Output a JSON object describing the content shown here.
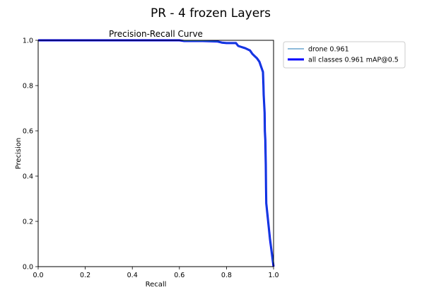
{
  "figure_title": "PR - 4 frozen Layers",
  "chart_data": {
    "type": "line",
    "title": "Precision-Recall Curve",
    "xlabel": "Recall",
    "ylabel": "Precision",
    "xlim": [
      0.0,
      1.0
    ],
    "ylim": [
      0.0,
      1.0
    ],
    "xticks": [
      "0.0",
      "0.2",
      "0.4",
      "0.6",
      "0.8",
      "1.0"
    ],
    "yticks": [
      "0.0",
      "0.2",
      "0.4",
      "0.6",
      "0.8",
      "1.0"
    ],
    "grid": false,
    "legend_position": "outside-top-right",
    "series": [
      {
        "name": "drone 0.961",
        "color": "#1f77b4",
        "width": "thin",
        "points": [
          [
            0.0,
            1.0
          ],
          [
            0.6,
            1.0
          ],
          [
            0.62,
            0.997
          ],
          [
            0.7,
            0.997
          ],
          [
            0.76,
            0.995
          ],
          [
            0.78,
            0.99
          ],
          [
            0.8,
            0.988
          ],
          [
            0.84,
            0.988
          ],
          [
            0.85,
            0.975
          ],
          [
            0.88,
            0.965
          ],
          [
            0.9,
            0.955
          ],
          [
            0.91,
            0.94
          ],
          [
            0.92,
            0.93
          ],
          [
            0.93,
            0.92
          ],
          [
            0.94,
            0.905
          ],
          [
            0.945,
            0.89
          ],
          [
            0.95,
            0.875
          ],
          [
            0.955,
            0.86
          ],
          [
            0.957,
            0.8
          ],
          [
            0.958,
            0.76
          ],
          [
            0.96,
            0.72
          ],
          [
            0.962,
            0.68
          ],
          [
            0.963,
            0.6
          ],
          [
            0.965,
            0.56
          ],
          [
            0.966,
            0.5
          ],
          [
            0.967,
            0.45
          ],
          [
            0.968,
            0.35
          ],
          [
            0.969,
            0.28
          ],
          [
            0.975,
            0.22
          ],
          [
            0.985,
            0.12
          ],
          [
            1.0,
            0.0
          ]
        ]
      },
      {
        "name": "all classes 0.961 mAP@0.5",
        "color": "#0000ff",
        "width": "thick",
        "points": [
          [
            0.0,
            1.0
          ],
          [
            0.6,
            1.0
          ],
          [
            0.62,
            0.997
          ],
          [
            0.7,
            0.997
          ],
          [
            0.76,
            0.995
          ],
          [
            0.78,
            0.99
          ],
          [
            0.8,
            0.988
          ],
          [
            0.84,
            0.988
          ],
          [
            0.85,
            0.975
          ],
          [
            0.88,
            0.965
          ],
          [
            0.9,
            0.955
          ],
          [
            0.91,
            0.94
          ],
          [
            0.92,
            0.93
          ],
          [
            0.93,
            0.92
          ],
          [
            0.94,
            0.905
          ],
          [
            0.945,
            0.89
          ],
          [
            0.95,
            0.875
          ],
          [
            0.955,
            0.86
          ],
          [
            0.957,
            0.8
          ],
          [
            0.958,
            0.76
          ],
          [
            0.96,
            0.72
          ],
          [
            0.962,
            0.68
          ],
          [
            0.963,
            0.6
          ],
          [
            0.965,
            0.56
          ],
          [
            0.966,
            0.5
          ],
          [
            0.967,
            0.45
          ],
          [
            0.968,
            0.35
          ],
          [
            0.969,
            0.28
          ],
          [
            0.975,
            0.22
          ],
          [
            0.985,
            0.12
          ],
          [
            1.0,
            0.0
          ]
        ]
      }
    ]
  }
}
